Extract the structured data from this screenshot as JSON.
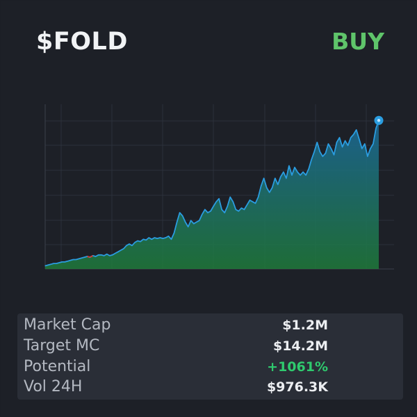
{
  "token": {
    "ticker": "$FOLD",
    "signal": "BUY",
    "signal_color": "#5fc46a"
  },
  "stats": [
    {
      "label": "Market Cap",
      "value": "$1.2M"
    },
    {
      "label": "Target MC",
      "value": "$14.2M"
    },
    {
      "label": "Potential",
      "value": "+1061%",
      "color": "#2fca6e"
    },
    {
      "label": "Vol 24H",
      "value": "$976.3K"
    }
  ],
  "chart_data": {
    "type": "area",
    "title": "",
    "xlabel": "",
    "ylabel": "",
    "grid": true,
    "legend": "none",
    "line_color": "#2b9de0",
    "fill_top_color": "#1b6a9c",
    "fill_bottom_color": "#1f7a3a",
    "marker_color": "#2b9de0",
    "ylim": [
      0,
      1
    ],
    "series": [
      {
        "values": [
          0.02,
          0.025,
          0.03,
          0.035,
          0.035,
          0.04,
          0.045,
          0.045,
          0.05,
          0.055,
          0.06,
          0.06,
          0.065,
          0.07,
          0.075,
          0.08,
          0.075,
          0.085,
          0.08,
          0.09,
          0.09,
          0.085,
          0.095,
          0.085,
          0.09,
          0.1,
          0.11,
          0.12,
          0.13,
          0.15,
          0.16,
          0.15,
          0.17,
          0.18,
          0.175,
          0.19,
          0.185,
          0.2,
          0.19,
          0.2,
          0.195,
          0.2,
          0.195,
          0.2,
          0.21,
          0.19,
          0.23,
          0.3,
          0.36,
          0.34,
          0.3,
          0.27,
          0.31,
          0.29,
          0.3,
          0.31,
          0.35,
          0.38,
          0.36,
          0.37,
          0.4,
          0.43,
          0.45,
          0.38,
          0.36,
          0.4,
          0.46,
          0.43,
          0.38,
          0.37,
          0.39,
          0.38,
          0.41,
          0.44,
          0.43,
          0.42,
          0.46,
          0.53,
          0.58,
          0.52,
          0.49,
          0.52,
          0.58,
          0.54,
          0.59,
          0.62,
          0.58,
          0.66,
          0.6,
          0.65,
          0.62,
          0.6,
          0.62,
          0.6,
          0.64,
          0.7,
          0.75,
          0.81,
          0.75,
          0.72,
          0.74,
          0.8,
          0.77,
          0.73,
          0.81,
          0.84,
          0.78,
          0.82,
          0.79,
          0.84,
          0.86,
          0.89,
          0.83,
          0.77,
          0.8,
          0.72,
          0.77,
          0.8,
          0.9,
          0.95
        ],
        "min_points": [
          15,
          16,
          17
        ],
        "min_color": "#d9362c"
      }
    ]
  }
}
